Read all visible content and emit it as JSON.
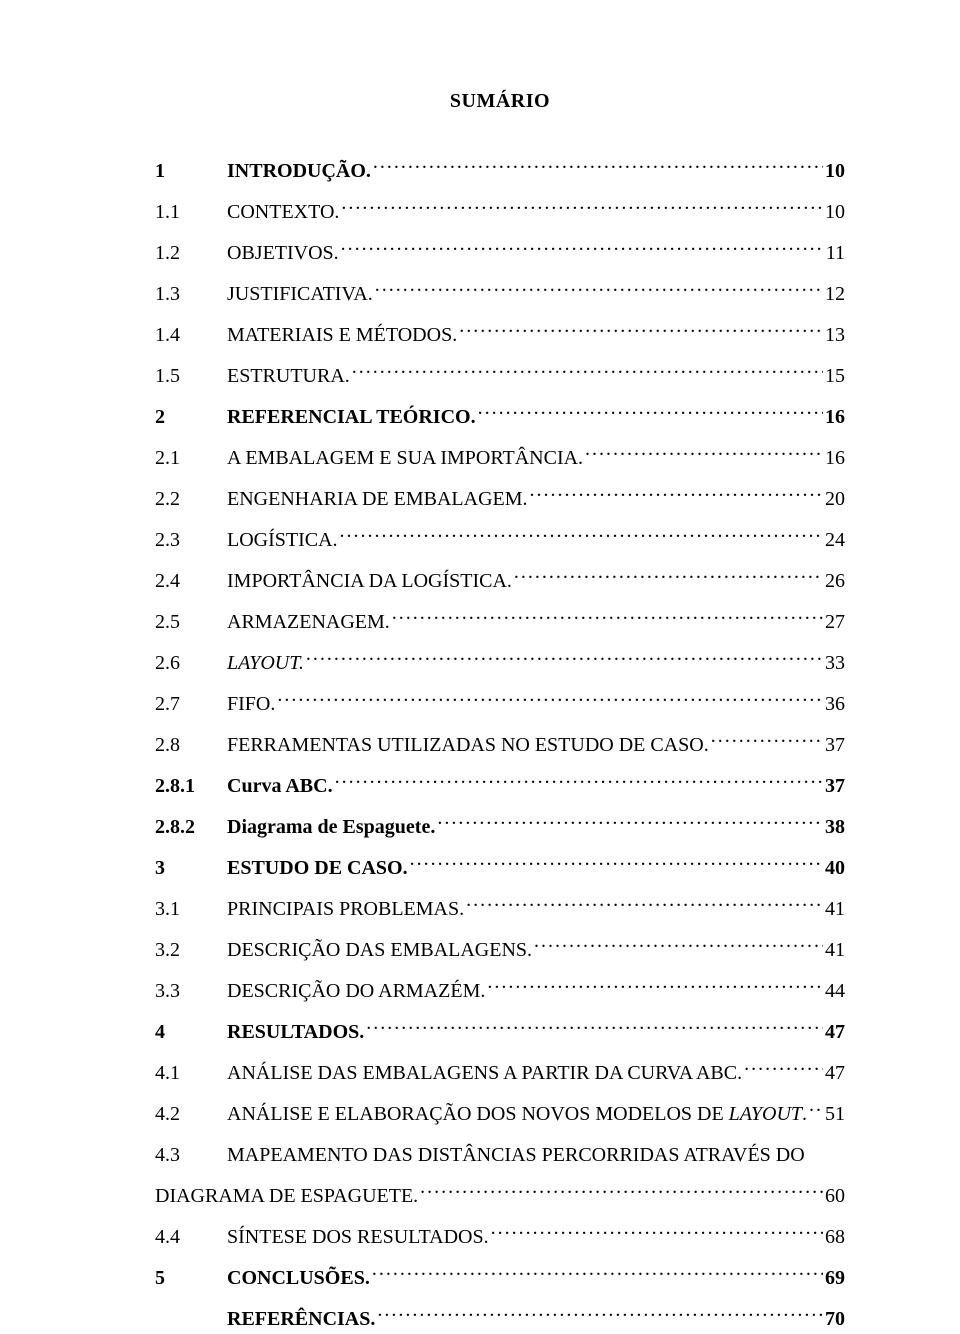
{
  "heading": "SUMÁRIO",
  "entries": [
    {
      "n": "1",
      "t": "INTRODUÇÃO.",
      "p": "10",
      "bold": true
    },
    {
      "n": "1.1",
      "t": "CONTEXTO.",
      "p": "10"
    },
    {
      "n": "1.2",
      "t": "OBJETIVOS.",
      "p": "11"
    },
    {
      "n": "1.3",
      "t": "JUSTIFICATIVA.",
      "p": "12"
    },
    {
      "n": "1.4",
      "t": "MATERIAIS E MÉTODOS.",
      "p": "13"
    },
    {
      "n": "1.5",
      "t": "ESTRUTURA.",
      "p": "15"
    },
    {
      "n": "2",
      "t": "REFERENCIAL TEÓRICO.",
      "p": "16",
      "bold": true
    },
    {
      "n": "2.1",
      "t": "A EMBALAGEM E SUA IMPORTÂNCIA.",
      "p": "16"
    },
    {
      "n": "2.2",
      "t": "ENGENHARIA DE EMBALAGEM.",
      "p": "20"
    },
    {
      "n": "2.3",
      "t": "LOGÍSTICA.",
      "p": "24"
    },
    {
      "n": "2.4",
      "t": "IMPORTÂNCIA DA LOGÍSTICA.",
      "p": "26"
    },
    {
      "n": "2.5",
      "t": "ARMAZENAGEM.",
      "p": "27"
    },
    {
      "n": "2.6",
      "t": "LAYOUT.",
      "p": "33",
      "italic": true
    },
    {
      "n": "2.7",
      "t": "FIFO.",
      "p": "36"
    },
    {
      "n": "2.8",
      "t": "FERRAMENTAS UTILIZADAS NO ESTUDO DE CASO.",
      "p": "37"
    },
    {
      "n": "2.8.1",
      "t": "Curva ABC.",
      "p": "37",
      "bold": true
    },
    {
      "n": "2.8.2",
      "t": "Diagrama de Espaguete.",
      "p": "38",
      "bold": true
    },
    {
      "n": "3",
      "t": "ESTUDO DE CASO.",
      "p": "40",
      "bold": true
    },
    {
      "n": "3.1",
      "t": "PRINCIPAIS PROBLEMAS.",
      "p": "41"
    },
    {
      "n": "3.2",
      "t": "DESCRIÇÃO DAS EMBALAGENS.",
      "p": "41"
    },
    {
      "n": "3.3",
      "t": "DESCRIÇÃO DO ARMAZÉM.",
      "p": "44"
    },
    {
      "n": "4",
      "t": "RESULTADOS.",
      "p": "47",
      "bold": true
    },
    {
      "n": "4.1",
      "t": "ANÁLISE DAS EMBALAGENS A PARTIR DA CURVA ABC.",
      "p": "47"
    },
    {
      "n": "4.2",
      "t": "ANÁLISE E ELABORAÇÃO DOS NOVOS MODELOS DE LAYOUT.",
      "p": "51",
      "italicWord": "LAYOUT"
    },
    {
      "n": "4.3",
      "t": "MAPEAMENTO DAS DISTÂNCIAS PERCORRIDAS ATRAVÉS DO",
      "p": "",
      "nopage": true
    },
    {
      "n": "",
      "t": "DIAGRAMA DE ESPAGUETE.",
      "p": "60",
      "noindent": true
    },
    {
      "n": "4.4",
      "t": "SÍNTESE DOS RESULTADOS.",
      "p": "68"
    },
    {
      "n": "5",
      "t": "CONCLUSÕES.",
      "p": "69",
      "bold": true
    },
    {
      "n": "",
      "t": "REFERÊNCIAS.",
      "p": "70",
      "bold": true,
      "indent": true
    }
  ]
}
